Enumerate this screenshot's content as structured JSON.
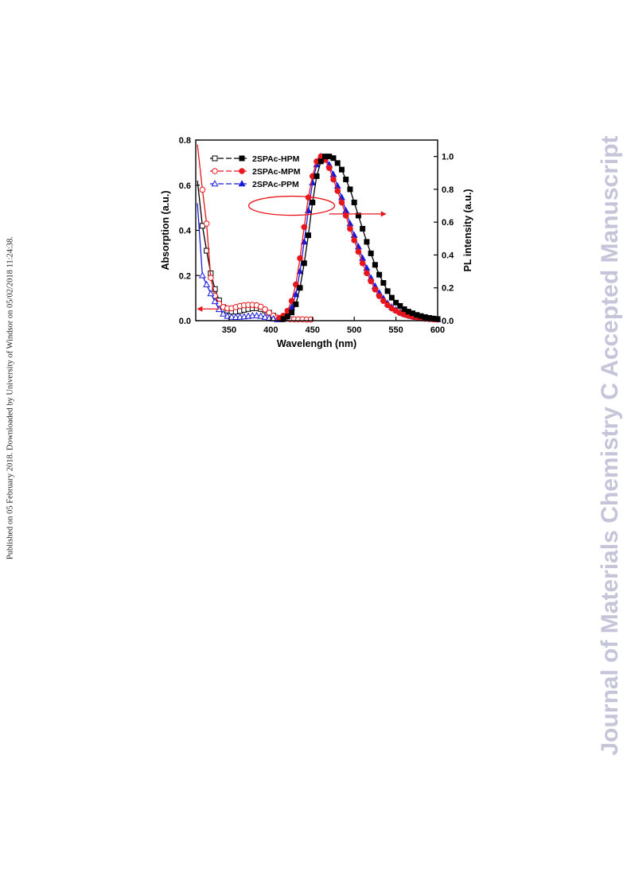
{
  "side_note": "Published on 05 February 2018. Downloaded by University of Windsor on 05/02/2018 11:24:38.",
  "watermark": "Journal of Materials Chemistry C Accepted Manuscript",
  "colors": {
    "HPM": "#000000",
    "MPM": "#e8161c",
    "PPM": "#1a1adb"
  },
  "chart_data": {
    "type": "line",
    "title": "",
    "xlabel": "Wavelength (nm)",
    "ylabel_left": "Absorption (a.u.)",
    "ylabel_right": "PL intensity (a.u.)",
    "xlim": [
      310,
      600
    ],
    "ylim_left": [
      0,
      0.8
    ],
    "ylim_right": [
      0,
      1.1
    ],
    "xticks": [
      "350",
      "400",
      "450",
      "500",
      "550",
      "600"
    ],
    "yticks_left": [
      "0.0",
      "0.2",
      "0.4",
      "0.6",
      "0.8"
    ],
    "yticks_right": [
      "0.0",
      "0.2",
      "0.4",
      "0.6",
      "0.8",
      "1.0"
    ],
    "legend_position": "top-left",
    "legend": [
      "2SPAc-HPM",
      "2SPAc-MPM",
      "2SPAc-PPM"
    ],
    "annotations": [
      "ellipse around PL curves with arrow pointing right to PL axis",
      "arrow pointing left to absorption axis"
    ],
    "absorption": [
      {
        "name": "2SPAc-HPM",
        "x": [
          312,
          318,
          323,
          328,
          333,
          338,
          343,
          348,
          353,
          358,
          363,
          368,
          373,
          378,
          383,
          388,
          393,
          398,
          403,
          408,
          413
        ],
        "y": [
          0.62,
          0.42,
          0.31,
          0.21,
          0.14,
          0.09,
          0.06,
          0.045,
          0.04,
          0.04,
          0.043,
          0.048,
          0.052,
          0.055,
          0.055,
          0.052,
          0.045,
          0.035,
          0.022,
          0.012,
          0.006
        ]
      },
      {
        "name": "2SPAc-MPM",
        "x": [
          312,
          318,
          323,
          328,
          333,
          338,
          343,
          348,
          353,
          358,
          363,
          368,
          373,
          378,
          383,
          388,
          393,
          398,
          403,
          408,
          413,
          418,
          423,
          428,
          433,
          438,
          443,
          448
        ],
        "y": [
          0.78,
          0.58,
          0.43,
          0.19,
          0.11,
          0.075,
          0.06,
          0.055,
          0.055,
          0.06,
          0.065,
          0.068,
          0.07,
          0.07,
          0.068,
          0.062,
          0.05,
          0.035,
          0.022,
          0.014,
          0.01,
          0.008,
          0.007,
          0.006,
          0.006,
          0.006,
          0.005,
          0.005
        ]
      },
      {
        "name": "2SPAc-PPM",
        "x": [
          312,
          318,
          323,
          328,
          333,
          338,
          343,
          348,
          353,
          358,
          363,
          368,
          373,
          378,
          383,
          388,
          393,
          398,
          403,
          408
        ],
        "y": [
          0.52,
          0.2,
          0.16,
          0.12,
          0.085,
          0.05,
          0.03,
          0.02,
          0.016,
          0.015,
          0.016,
          0.018,
          0.02,
          0.022,
          0.022,
          0.02,
          0.016,
          0.012,
          0.008,
          0.005
        ]
      }
    ],
    "pl": [
      {
        "name": "2SPAc-HPM",
        "x": [
          415,
          420,
          425,
          430,
          435,
          440,
          445,
          450,
          455,
          460,
          465,
          470,
          475,
          480,
          485,
          490,
          495,
          500,
          505,
          510,
          515,
          520,
          525,
          530,
          535,
          540,
          545,
          550,
          555,
          560,
          565,
          570,
          575,
          580,
          585,
          590,
          595,
          600
        ],
        "y": [
          0.01,
          0.025,
          0.05,
          0.1,
          0.2,
          0.35,
          0.52,
          0.72,
          0.88,
          0.97,
          1.0,
          1.0,
          0.99,
          0.96,
          0.92,
          0.86,
          0.8,
          0.72,
          0.64,
          0.56,
          0.48,
          0.41,
          0.34,
          0.28,
          0.23,
          0.18,
          0.14,
          0.11,
          0.09,
          0.07,
          0.055,
          0.045,
          0.035,
          0.028,
          0.022,
          0.017,
          0.013,
          0.01
        ]
      },
      {
        "name": "2SPAc-MPM",
        "x": [
          410,
          415,
          420,
          425,
          430,
          435,
          440,
          445,
          450,
          455,
          460,
          465,
          470,
          475,
          480,
          485,
          490,
          495,
          500,
          505,
          510,
          515,
          520,
          525,
          530,
          535,
          540,
          545,
          550,
          555,
          560,
          565,
          570,
          575,
          580,
          585,
          590,
          595,
          600
        ],
        "y": [
          0.015,
          0.03,
          0.06,
          0.12,
          0.22,
          0.38,
          0.57,
          0.75,
          0.88,
          0.97,
          1.0,
          0.98,
          0.93,
          0.86,
          0.79,
          0.72,
          0.64,
          0.56,
          0.49,
          0.42,
          0.35,
          0.29,
          0.24,
          0.19,
          0.15,
          0.12,
          0.095,
          0.075,
          0.06,
          0.047,
          0.037,
          0.03,
          0.024,
          0.019,
          0.015,
          0.012,
          0.01,
          0.008,
          0.007
        ]
      },
      {
        "name": "2SPAc-PPM",
        "x": [
          410,
          415,
          420,
          425,
          430,
          435,
          440,
          445,
          450,
          455,
          460,
          465,
          470,
          475,
          480,
          485,
          490,
          495,
          500,
          505,
          510,
          515,
          520,
          525,
          530,
          535,
          540,
          545,
          550,
          555,
          560,
          565,
          570,
          575,
          580,
          585,
          590,
          595,
          600
        ],
        "y": [
          0.01,
          0.02,
          0.04,
          0.08,
          0.16,
          0.3,
          0.48,
          0.67,
          0.84,
          0.95,
          1.0,
          0.99,
          0.95,
          0.89,
          0.82,
          0.75,
          0.67,
          0.59,
          0.52,
          0.45,
          0.38,
          0.32,
          0.26,
          0.21,
          0.17,
          0.135,
          0.105,
          0.083,
          0.066,
          0.052,
          0.041,
          0.033,
          0.026,
          0.021,
          0.017,
          0.013,
          0.011,
          0.009,
          0.007
        ]
      }
    ]
  }
}
